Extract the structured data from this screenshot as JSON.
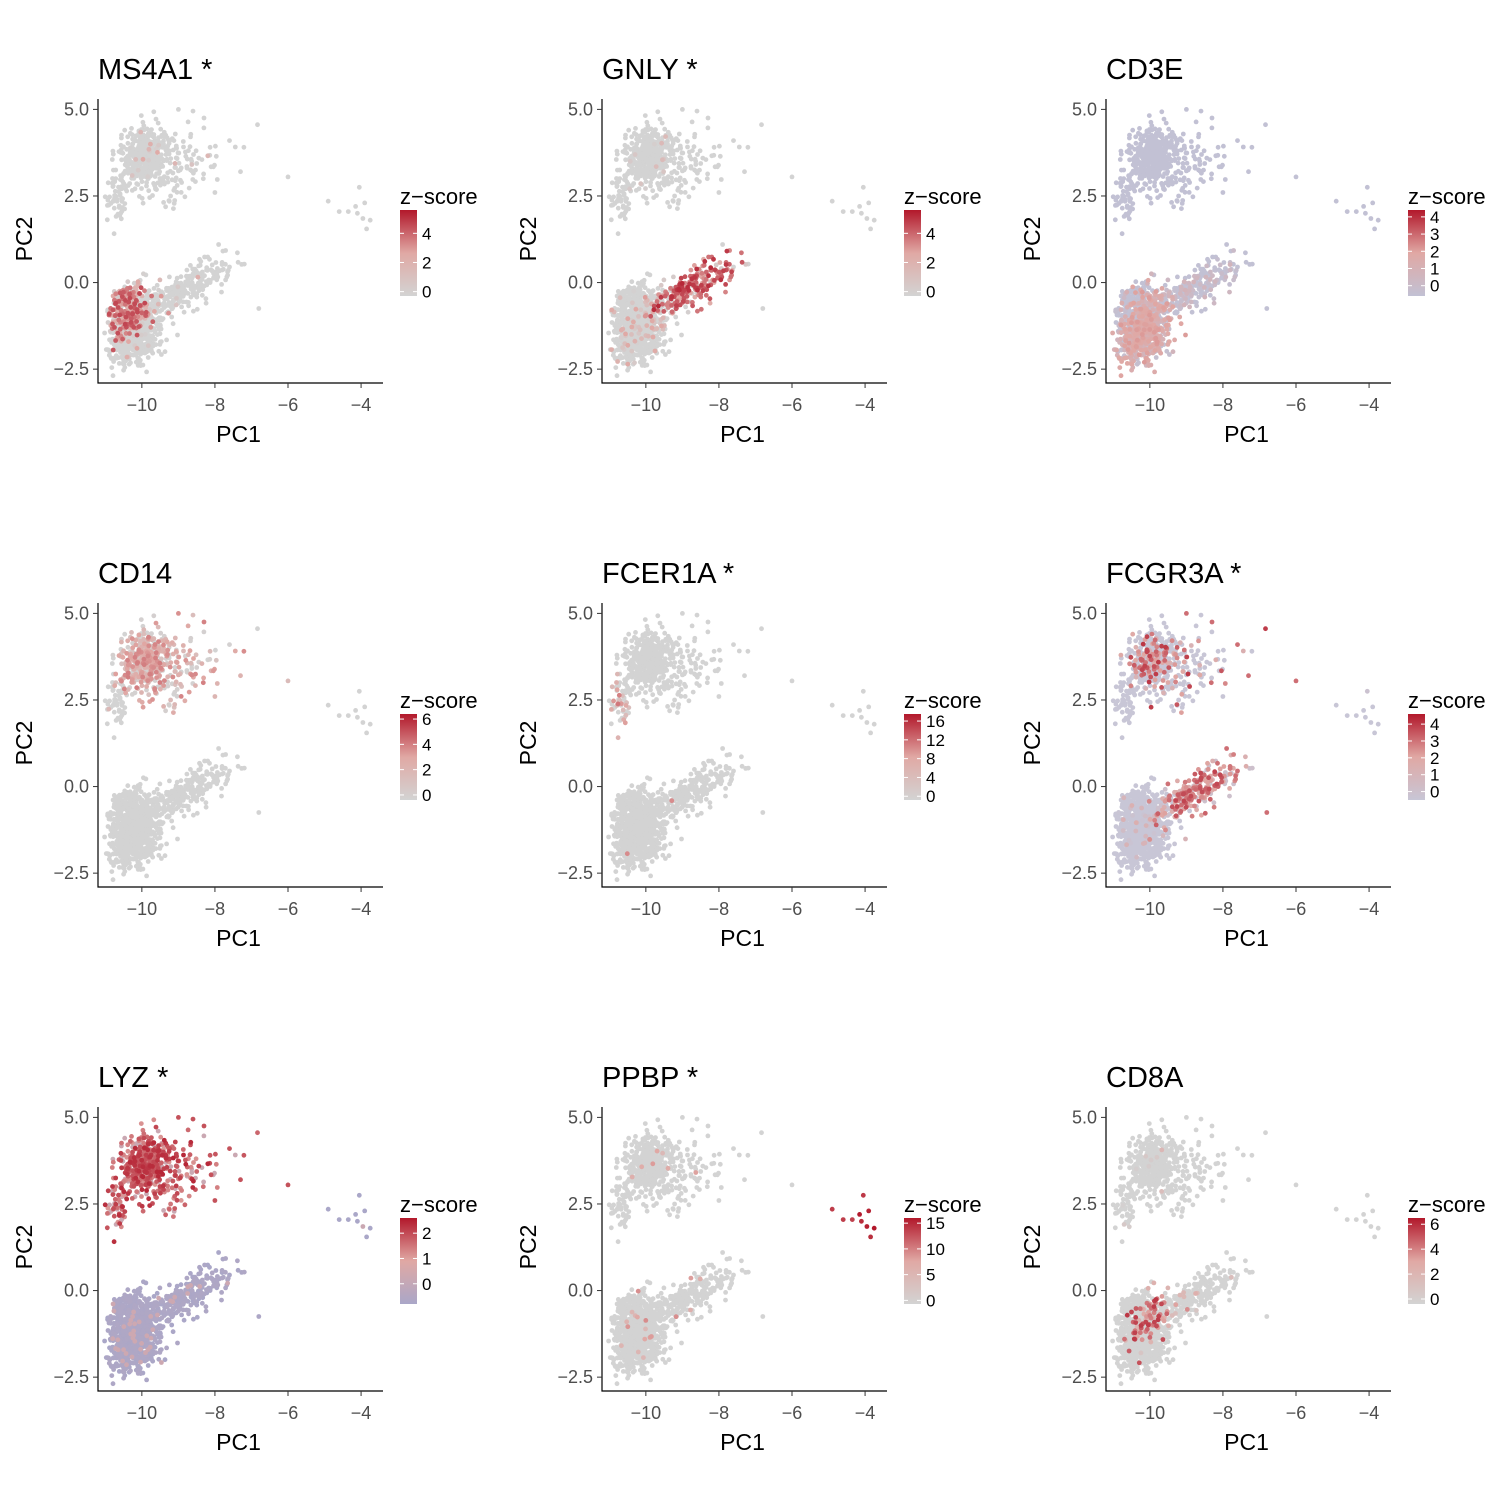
{
  "figure": {
    "x_label": "PC1",
    "y_label": "PC2",
    "legend_title": "z−score"
  },
  "chart_data": [
    {
      "type": "scatter",
      "title": "MS4A1 *",
      "gene": "MS4A1",
      "highlight": "bcell",
      "xlabel": "PC1",
      "ylabel": "PC2",
      "xlim": [
        -11.2,
        -3.4
      ],
      "ylim": [
        -2.9,
        5.3
      ],
      "xticks": [
        -10,
        -8,
        -6,
        -4
      ],
      "yticks": [
        -2.5,
        0.0,
        2.5,
        5.0
      ],
      "xtick_labels": [
        "−10",
        "−8",
        "−6",
        "−4"
      ],
      "ytick_labels": [
        "−2.5",
        "0.0",
        "2.5",
        "5.0"
      ],
      "legend": {
        "title": "z−score",
        "min": -0.3,
        "max": 5.6,
        "ticks": [
          0,
          2,
          4
        ],
        "low_color": "#d3d3d3"
      }
    },
    {
      "type": "scatter",
      "title": "GNLY *",
      "gene": "GNLY",
      "highlight": "nk",
      "xlabel": "PC1",
      "ylabel": "PC2",
      "xlim": [
        -11.2,
        -3.4
      ],
      "ylim": [
        -2.9,
        5.3
      ],
      "xticks": [
        -10,
        -8,
        -6,
        -4
      ],
      "yticks": [
        -2.5,
        0.0,
        2.5,
        5.0
      ],
      "xtick_labels": [
        "−10",
        "−8",
        "−6",
        "−4"
      ],
      "ytick_labels": [
        "−2.5",
        "0.0",
        "2.5",
        "5.0"
      ],
      "legend": {
        "title": "z−score",
        "min": -0.3,
        "max": 5.6,
        "ticks": [
          0,
          2,
          4
        ],
        "low_color": "#d3d3d3"
      }
    },
    {
      "type": "scatter",
      "title": "CD3E",
      "gene": "CD3E",
      "highlight": "tcell",
      "xlabel": "PC1",
      "ylabel": "PC2",
      "xlim": [
        -11.2,
        -3.4
      ],
      "ylim": [
        -2.9,
        5.3
      ],
      "xticks": [
        -10,
        -8,
        -6,
        -4
      ],
      "yticks": [
        -2.5,
        0.0,
        2.5,
        5.0
      ],
      "xtick_labels": [
        "−10",
        "−8",
        "−6",
        "−4"
      ],
      "ytick_labels": [
        "−2.5",
        "0.0",
        "2.5",
        "5.0"
      ],
      "legend": {
        "title": "z−score",
        "min": -0.6,
        "max": 4.4,
        "ticks": [
          0,
          1,
          2,
          3,
          4
        ],
        "low_color": "#c2c1d4"
      }
    },
    {
      "type": "scatter",
      "title": "CD14",
      "gene": "CD14",
      "highlight": "mono",
      "xlabel": "PC1",
      "ylabel": "PC2",
      "xlim": [
        -11.2,
        -3.4
      ],
      "ylim": [
        -2.9,
        5.3
      ],
      "xticks": [
        -10,
        -8,
        -6,
        -4
      ],
      "yticks": [
        -2.5,
        0.0,
        2.5,
        5.0
      ],
      "xtick_labels": [
        "−10",
        "−8",
        "−6",
        "−4"
      ],
      "ytick_labels": [
        "−2.5",
        "0.0",
        "2.5",
        "5.0"
      ],
      "legend": {
        "title": "z−score",
        "min": -0.4,
        "max": 6.4,
        "ticks": [
          0,
          2,
          4,
          6
        ],
        "low_color": "#d3d3d3"
      }
    },
    {
      "type": "scatter",
      "title": "FCER1A *",
      "gene": "FCER1A",
      "highlight": "dc",
      "xlabel": "PC1",
      "ylabel": "PC2",
      "xlim": [
        -11.2,
        -3.4
      ],
      "ylim": [
        -2.9,
        5.3
      ],
      "xticks": [
        -10,
        -8,
        -6,
        -4
      ],
      "yticks": [
        -2.5,
        0.0,
        2.5,
        5.0
      ],
      "xtick_labels": [
        "−10",
        "−8",
        "−6",
        "−4"
      ],
      "ytick_labels": [
        "−2.5",
        "0.0",
        "2.5",
        "5.0"
      ],
      "legend": {
        "title": "z−score",
        "min": -0.8,
        "max": 17.5,
        "ticks": [
          0,
          4,
          8,
          12,
          16
        ],
        "low_color": "#d3d3d3"
      }
    },
    {
      "type": "scatter",
      "title": "FCGR3A *",
      "gene": "FCGR3A",
      "highlight": "fcgr3a",
      "xlabel": "PC1",
      "ylabel": "PC2",
      "xlim": [
        -11.2,
        -3.4
      ],
      "ylim": [
        -2.9,
        5.3
      ],
      "xticks": [
        -10,
        -8,
        -6,
        -4
      ],
      "yticks": [
        -2.5,
        0.0,
        2.5,
        5.0
      ],
      "xtick_labels": [
        "−10",
        "−8",
        "−6",
        "−4"
      ],
      "ytick_labels": [
        "−2.5",
        "0.0",
        "2.5",
        "5.0"
      ],
      "legend": {
        "title": "z−score",
        "min": -0.5,
        "max": 4.6,
        "ticks": [
          0,
          1,
          2,
          3,
          4
        ],
        "low_color": "#c8c6d6"
      }
    },
    {
      "type": "scatter",
      "title": "LYZ *",
      "gene": "LYZ",
      "highlight": "lyz",
      "xlabel": "PC1",
      "ylabel": "PC2",
      "xlim": [
        -11.2,
        -3.4
      ],
      "ylim": [
        -2.9,
        5.3
      ],
      "xticks": [
        -10,
        -8,
        -6,
        -4
      ],
      "yticks": [
        -2.5,
        0.0,
        2.5,
        5.0
      ],
      "xtick_labels": [
        "−10",
        "−8",
        "−6",
        "−4"
      ],
      "ytick_labels": [
        "−2.5",
        "0.0",
        "2.5",
        "5.0"
      ],
      "legend": {
        "title": "z−score",
        "min": -0.8,
        "max": 2.6,
        "ticks": [
          0,
          1,
          2
        ],
        "low_color": "#aaa7c8"
      }
    },
    {
      "type": "scatter",
      "title": "PPBP *",
      "gene": "PPBP",
      "highlight": "platelet",
      "xlabel": "PC1",
      "ylabel": "PC2",
      "xlim": [
        -11.2,
        -3.4
      ],
      "ylim": [
        -2.9,
        5.3
      ],
      "xticks": [
        -10,
        -8,
        -6,
        -4
      ],
      "yticks": [
        -2.5,
        0.0,
        2.5,
        5.0
      ],
      "xtick_labels": [
        "−10",
        "−8",
        "−6",
        "−4"
      ],
      "ytick_labels": [
        "−2.5",
        "0.0",
        "2.5",
        "5.0"
      ],
      "legend": {
        "title": "z−score",
        "min": -0.7,
        "max": 16.0,
        "ticks": [
          0,
          5,
          10,
          15
        ],
        "low_color": "#d3d3d3"
      }
    },
    {
      "type": "scatter",
      "title": "CD8A",
      "gene": "CD8A",
      "highlight": "cd8",
      "xlabel": "PC1",
      "ylabel": "PC2",
      "xlim": [
        -11.2,
        -3.4
      ],
      "ylim": [
        -2.9,
        5.3
      ],
      "xticks": [
        -10,
        -8,
        -6,
        -4
      ],
      "yticks": [
        -2.5,
        0.0,
        2.5,
        5.0
      ],
      "xtick_labels": [
        "−10",
        "−8",
        "−6",
        "−4"
      ],
      "ytick_labels": [
        "−2.5",
        "0.0",
        "2.5",
        "5.0"
      ],
      "legend": {
        "title": "z−score",
        "min": -0.4,
        "max": 6.5,
        "ticks": [
          0,
          2,
          4,
          6
        ],
        "low_color": "#d3d3d3"
      }
    }
  ],
  "colors": {
    "high": "#b2182b",
    "mid": "#e0a8a4",
    "axis_line": "#000000",
    "tick_text": "#4d4d4d"
  }
}
